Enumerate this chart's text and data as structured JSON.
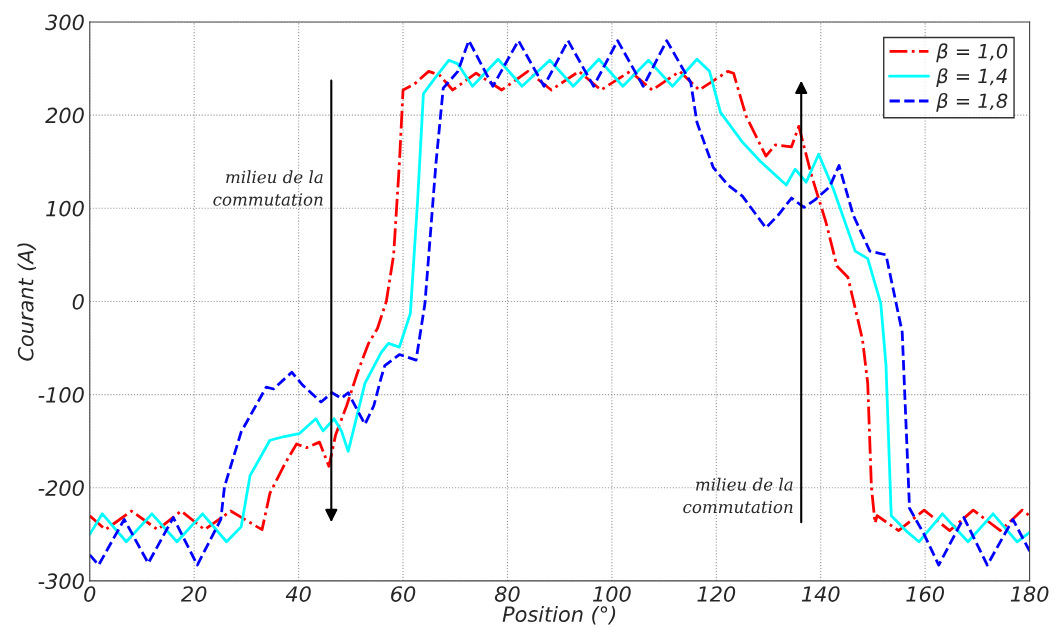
{
  "chart_data": {
    "type": "line",
    "xlabel": "Position (°)",
    "ylabel": "Courant (A)",
    "xlim": [
      0,
      180
    ],
    "ylim": [
      -300,
      300
    ],
    "xticks": [
      0,
      20,
      40,
      60,
      80,
      100,
      120,
      140,
      160,
      180
    ],
    "yticks": [
      -300,
      -200,
      -100,
      0,
      100,
      200,
      300
    ],
    "grid": true,
    "legend": "top right",
    "annotations": [
      "milieu de la\ncommutation",
      "milieu de la\ncommutation"
    ],
    "series": [
      {
        "name": "β = 1,0",
        "color": "#ff0000",
        "line_style": "dashdot",
        "x": [
          0,
          3,
          8,
          13,
          17.5,
          22,
          27,
          33,
          34.5,
          37.3,
          39.6,
          41.5,
          44,
          45.8,
          47.1,
          49.2,
          51.3,
          53.4,
          55.1,
          56.8,
          58.2,
          59.3,
          60,
          62.1,
          64.9,
          67,
          69.5,
          74,
          78.9,
          83.9,
          88.4,
          93.7,
          97.9,
          103.5,
          107.7,
          113,
          116.7,
          122.2,
          123.3,
          125.7,
          129.5,
          131.3,
          134.4,
          135.8,
          138.2,
          141,
          143.1,
          145.2,
          148,
          149,
          149.7,
          150.4,
          150.8,
          154.9,
          159.8,
          164.7,
          169.2,
          174.4,
          178.6,
          180
        ],
        "values": [
          -230,
          -245,
          -225,
          -245,
          -225,
          -245,
          -225,
          -245,
          -206,
          -175,
          -153,
          -157,
          -151,
          -177,
          -143,
          -112,
          -76,
          -45,
          -29,
          0,
          50,
          148,
          227,
          233,
          247,
          243,
          227,
          245,
          227,
          247,
          227,
          247,
          227,
          247,
          227,
          247,
          227,
          247,
          245,
          199,
          156,
          168,
          166,
          188,
          136,
          85,
          38,
          26,
          -41,
          -88,
          -199,
          -238,
          -230,
          -246,
          -224,
          -246,
          -224,
          -246,
          -224,
          -230
        ]
      },
      {
        "name": "β = 1,4",
        "color": "#00ffff",
        "line_style": "solid",
        "x": [
          0,
          2.4,
          7,
          11.9,
          16.7,
          21.6,
          26.2,
          29,
          30.7,
          34.5,
          37.3,
          40.1,
          43.3,
          44.7,
          46.8,
          48.2,
          49.5,
          52.7,
          55.8,
          57.2,
          59.3,
          61.4,
          62.8,
          63.9,
          66,
          68.8,
          70.5,
          73.3,
          78.2,
          82.8,
          88.1,
          92.6,
          97.5,
          102.1,
          107,
          111.6,
          116.3,
          118.7,
          120.8,
          125,
          128.5,
          133.4,
          135.1,
          137.2,
          139.6,
          142.4,
          146.6,
          149,
          151.5,
          152.5,
          153.5,
          156.3,
          158.8,
          163.3,
          168.2,
          173,
          177.6,
          180
        ],
        "values": [
          -250,
          -228,
          -258,
          -228,
          -258,
          -228,
          -258,
          -242,
          -187,
          -149,
          -145,
          -142,
          -126,
          -139,
          -126,
          -139,
          -161,
          -88,
          -55,
          -45,
          -49,
          -13,
          109,
          223,
          239,
          259,
          255,
          231,
          260,
          231,
          259,
          231,
          260,
          231,
          259,
          231,
          260,
          247,
          203,
          171,
          150,
          125,
          142,
          128,
          158,
          121,
          54,
          46,
          -2,
          -69,
          -230,
          -246,
          -258,
          -228,
          -258,
          -228,
          -258,
          -248
        ]
      },
      {
        "name": "β = 1,8",
        "color": "#0000ff",
        "line_style": "dashed",
        "x": [
          0,
          1.7,
          6.6,
          11.2,
          16,
          20.6,
          25.1,
          25.8,
          29,
          31.4,
          33.8,
          35.2,
          38.7,
          40.8,
          44.3,
          46.4,
          48.2,
          49.5,
          52.7,
          54.4,
          55.8,
          56.5,
          59.3,
          62.5,
          64.2,
          66.3,
          67.7,
          70.5,
          72.6,
          77.2,
          82.1,
          87,
          91.6,
          96.5,
          101.1,
          106,
          110.5,
          115.1,
          116.3,
          119.4,
          122.2,
          125,
          129.5,
          131.9,
          134.4,
          136.8,
          138.9,
          141.7,
          143.5,
          146.2,
          149.4,
          152.5,
          155.6,
          157,
          159.8,
          162.6,
          167.4,
          171.9,
          176.8,
          180
        ],
        "values": [
          -272,
          -283,
          -234,
          -281,
          -232,
          -283,
          -234,
          -199,
          -140,
          -116,
          -92,
          -94,
          -76,
          -90,
          -108,
          -98,
          -104,
          -98,
          -132,
          -112,
          -82,
          -69,
          -57,
          -63,
          -2,
          148,
          229,
          247,
          280,
          231,
          280,
          231,
          280,
          231,
          280,
          231,
          280,
          235,
          192,
          144,
          125,
          113,
          79,
          93,
          111,
          101,
          109,
          123,
          146,
          93,
          54,
          50,
          -33,
          -222,
          -250,
          -283,
          -232,
          -283,
          -234,
          -268
        ]
      }
    ]
  }
}
